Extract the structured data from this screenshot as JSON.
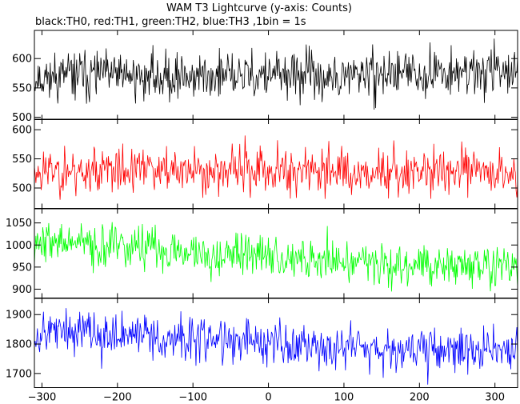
{
  "chart_data": {
    "type": "line",
    "title": "WAM T3 Lightcurve (y-axis: Counts)",
    "subtitle": "black:TH0, red:TH1, green:TH2, blue:TH3 ,1bin = 1s",
    "xlim": [
      -310,
      330
    ],
    "x_ticks": [
      -300,
      -200,
      -100,
      0,
      100,
      200,
      300
    ],
    "x_tick_labels": [
      "−300",
      "−200",
      "−100",
      "0",
      "100",
      "200",
      "300"
    ],
    "x_step": 1,
    "series": [
      {
        "name": "TH0",
        "color": "#000000",
        "ylim": [
          496,
          648
        ],
        "y_ticks": [
          500,
          550,
          600
        ],
        "y_tick_labels": [
          "500",
          "550",
          "600"
        ],
        "level": [
          [
            -310,
            568
          ],
          [
            -250,
            572
          ],
          [
            -150,
            570
          ],
          [
            -50,
            570
          ],
          [
            50,
            572
          ],
          [
            95,
            560
          ],
          [
            110,
            573
          ],
          [
            200,
            575
          ],
          [
            330,
            582
          ]
        ],
        "noise_sd": 20,
        "seed": 11
      },
      {
        "name": "TH1",
        "color": "#ff0000",
        "ylim": [
          465,
          618
        ],
        "y_ticks": [
          500,
          550,
          600
        ],
        "y_tick_labels": [
          "500",
          "550",
          "600"
        ],
        "level": [
          [
            -310,
            530
          ],
          [
            0,
            530
          ],
          [
            330,
            528
          ]
        ],
        "noise_sd": 20,
        "seed": 23
      },
      {
        "name": "TH2",
        "color": "#00ff00",
        "ylim": [
          880,
          1082
        ],
        "y_ticks": [
          900,
          950,
          1000,
          1050
        ],
        "y_tick_labels": [
          "900",
          "950",
          "1000",
          "1050"
        ],
        "level": [
          [
            -310,
            1010
          ],
          [
            -200,
            995
          ],
          [
            -100,
            985
          ],
          [
            0,
            975
          ],
          [
            100,
            965
          ],
          [
            200,
            955
          ],
          [
            330,
            950
          ]
        ],
        "noise_sd": 24,
        "seed": 37
      },
      {
        "name": "TH3",
        "color": "#0000ff",
        "ylim": [
          1652,
          1955
        ],
        "y_ticks": [
          1700,
          1800,
          1900
        ],
        "y_tick_labels": [
          "1700",
          "1800",
          "1900"
        ],
        "level": [
          [
            -310,
            1845
          ],
          [
            -200,
            1835
          ],
          [
            -100,
            1815
          ],
          [
            0,
            1805
          ],
          [
            100,
            1795
          ],
          [
            200,
            1785
          ],
          [
            330,
            1775
          ]
        ],
        "noise_sd": 38,
        "seed": 53
      }
    ]
  }
}
